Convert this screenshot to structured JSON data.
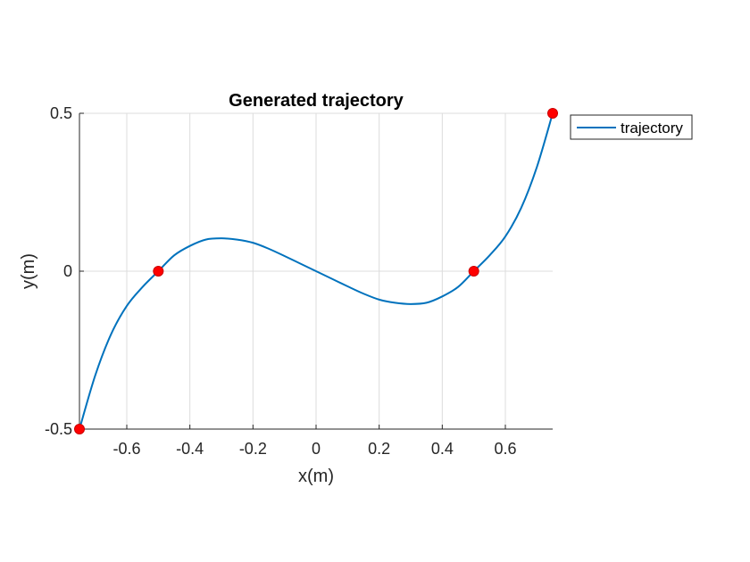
{
  "chart_data": {
    "type": "line",
    "title": "Generated trajectory",
    "xlabel": "x(m)",
    "ylabel": "y(m)",
    "xlim": [
      -0.75,
      0.75
    ],
    "ylim": [
      -0.5,
      0.5
    ],
    "xticks": [
      -0.6,
      -0.4,
      -0.2,
      0,
      0.2,
      0.4,
      0.6
    ],
    "xtick_labels": [
      "-0.6",
      "-0.4",
      "-0.2",
      "0",
      "0.2",
      "0.4",
      "0.6"
    ],
    "yticks": [
      -0.5,
      0,
      0.5
    ],
    "ytick_labels": [
      "-0.5",
      "0",
      "0.5"
    ],
    "grid": true,
    "legend_position": "outside-top-right",
    "series": [
      {
        "name": "trajectory",
        "color": "#0072BD",
        "x": [
          -0.75,
          -0.7,
          -0.65,
          -0.6,
          -0.55,
          -0.5,
          -0.45,
          -0.4,
          -0.35,
          -0.3,
          -0.25,
          -0.2,
          -0.15,
          -0.1,
          -0.05,
          0,
          0.05,
          0.1,
          0.15,
          0.2,
          0.25,
          0.3,
          0.35,
          0.4,
          0.45,
          0.5,
          0.55,
          0.6,
          0.65,
          0.7,
          0.75
        ],
        "y": [
          -0.5,
          -0.33,
          -0.2,
          -0.11,
          -0.05,
          0,
          0.05,
          0.08,
          0.1,
          0.104,
          0.1,
          0.09,
          0.071,
          0.048,
          0.024,
          0,
          -0.024,
          -0.048,
          -0.071,
          -0.09,
          -0.1,
          -0.104,
          -0.1,
          -0.08,
          -0.05,
          0,
          0.05,
          0.11,
          0.2,
          0.33,
          0.5
        ]
      }
    ],
    "markers": {
      "color": "#FF0000",
      "points": [
        [
          -0.75,
          -0.5
        ],
        [
          -0.5,
          0
        ],
        [
          0.5,
          0
        ],
        [
          0.75,
          0.5
        ]
      ]
    }
  }
}
